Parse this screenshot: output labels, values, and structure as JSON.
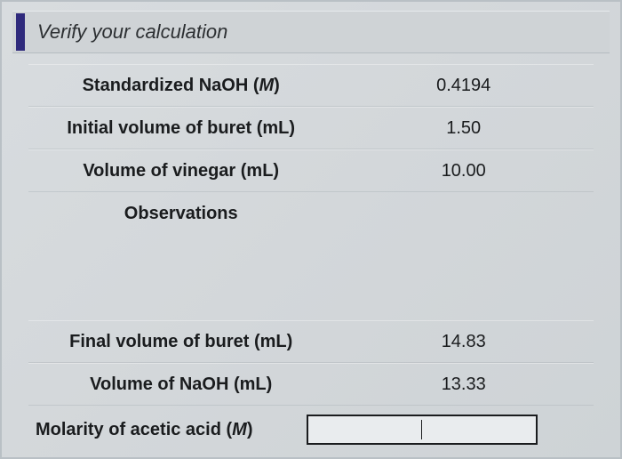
{
  "header": {
    "title": "Verify your calculation",
    "accent_color": "#2f2a7c"
  },
  "rows": [
    {
      "label_pre": "Standardized NaOH (",
      "label_em": "M",
      "label_post": ")",
      "value": "0.4194"
    },
    {
      "label_pre": "Initial volume of buret (mL)",
      "label_em": "",
      "label_post": "",
      "value": "1.50"
    },
    {
      "label_pre": "Volume of vinegar (mL)",
      "label_em": "",
      "label_post": "",
      "value": "10.00"
    },
    {
      "label_pre": "Observations",
      "label_em": "",
      "label_post": "",
      "value": ""
    }
  ],
  "lower_rows": [
    {
      "label_pre": "Final volume of buret (mL)",
      "label_em": "",
      "label_post": "",
      "value": "14.83"
    },
    {
      "label_pre": "Volume of NaOH (mL)",
      "label_em": "",
      "label_post": "",
      "value": "13.33"
    }
  ],
  "input_row": {
    "label_pre": "Molarity of acetic acid (",
    "label_em": "M",
    "label_post": ")",
    "value": ""
  },
  "style": {
    "background_color": "#d9dde0",
    "text_color": "#1a1c1e",
    "label_fontsize": 20,
    "value_fontsize": 20,
    "header_fontsize": 22,
    "border_color": "#b9c0c5",
    "input_bg": "#e9ecee"
  }
}
